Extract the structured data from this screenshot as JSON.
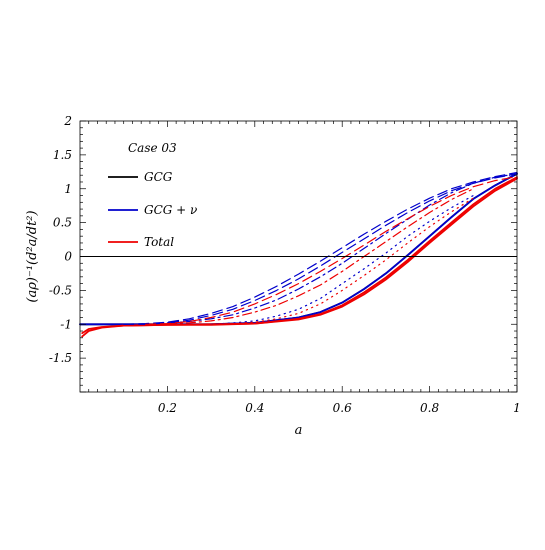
{
  "chart_data": {
    "type": "line",
    "title": "",
    "xlabel": "a",
    "ylabel": "(aρ)⁻¹(d²a/dt²)",
    "xlim": [
      0,
      1
    ],
    "ylim": [
      -2,
      2
    ],
    "xticks": [
      "0.2",
      "0.4",
      "0.6",
      "0.8",
      "1"
    ],
    "yticks": [
      "-1.5",
      "-1",
      "-0.5",
      "0",
      "0.5",
      "1",
      "1.5",
      "2"
    ],
    "zero_line": true,
    "grid": false,
    "legend_title": "Case 03",
    "legend_position": "top-left",
    "legend": [
      {
        "label": "GCG",
        "color": "#000000"
      },
      {
        "label": "GCG + ν",
        "color": "#0000cc"
      },
      {
        "label": "Total",
        "color": "#ee0000"
      }
    ],
    "series": [
      {
        "name": "GCG",
        "color": "#000000",
        "style": "solid",
        "x": [
          0.0,
          0.2,
          0.3,
          0.4,
          0.5,
          0.55,
          0.6,
          0.65,
          0.7,
          0.75,
          0.8,
          0.85,
          0.9,
          0.95,
          1.0
        ],
        "y": [
          -1.0,
          -1.0,
          -1.0,
          -0.98,
          -0.9,
          -0.82,
          -0.68,
          -0.48,
          -0.25,
          0.02,
          0.3,
          0.58,
          0.85,
          1.05,
          1.22
        ]
      },
      {
        "name": "GCG + ν",
        "color": "#0000cc",
        "style": "solid",
        "x": [
          0.0,
          0.2,
          0.3,
          0.4,
          0.5,
          0.55,
          0.6,
          0.65,
          0.7,
          0.75,
          0.8,
          0.85,
          0.9,
          0.95,
          1.0
        ],
        "y": [
          -1.0,
          -1.0,
          -1.0,
          -0.98,
          -0.9,
          -0.82,
          -0.68,
          -0.48,
          -0.25,
          0.02,
          0.3,
          0.58,
          0.85,
          1.05,
          1.22
        ]
      },
      {
        "name": "Total",
        "color": "#ee0000",
        "style": "solid",
        "x": [
          0.005,
          0.02,
          0.05,
          0.1,
          0.2,
          0.3,
          0.4,
          0.5,
          0.55,
          0.6,
          0.65,
          0.7,
          0.75,
          0.8,
          0.85,
          0.9,
          0.95,
          1.0
        ],
        "y": [
          -1.18,
          -1.1,
          -1.05,
          -1.02,
          -1.01,
          -1.01,
          -0.99,
          -0.93,
          -0.86,
          -0.74,
          -0.56,
          -0.34,
          -0.08,
          0.2,
          0.47,
          0.74,
          0.97,
          1.15
        ]
      },
      {
        "name": "Total",
        "color": "#ee0000",
        "style": "solid",
        "x": [
          0.005,
          0.02,
          0.05,
          0.1,
          0.2,
          0.3,
          0.4,
          0.5,
          0.55,
          0.6,
          0.65,
          0.7,
          0.75,
          0.8,
          0.85,
          0.9,
          0.95,
          1.0
        ],
        "y": [
          -1.13,
          -1.07,
          -1.04,
          -1.02,
          -1.01,
          -1.0,
          -0.99,
          -0.92,
          -0.85,
          -0.72,
          -0.53,
          -0.31,
          -0.05,
          0.23,
          0.5,
          0.77,
          1.0,
          1.17
        ]
      },
      {
        "name": "GCG + ν",
        "color": "#0000cc",
        "style": "dotted",
        "x": [
          0.3,
          0.35,
          0.4,
          0.45,
          0.5,
          0.55,
          0.6,
          0.65,
          0.7,
          0.75,
          0.8,
          0.85,
          0.9
        ],
        "y": [
          -1.0,
          -0.98,
          -0.95,
          -0.88,
          -0.78,
          -0.62,
          -0.4,
          -0.18,
          0.05,
          0.3,
          0.52,
          0.72,
          0.9
        ]
      },
      {
        "name": "Total",
        "color": "#ee0000",
        "style": "dotted",
        "x": [
          0.3,
          0.35,
          0.4,
          0.45,
          0.5,
          0.55,
          0.6,
          0.65,
          0.7,
          0.75,
          0.8,
          0.85,
          0.9
        ],
        "y": [
          -1.0,
          -0.99,
          -0.97,
          -0.92,
          -0.84,
          -0.7,
          -0.5,
          -0.28,
          -0.05,
          0.2,
          0.44,
          0.66,
          0.86
        ]
      },
      {
        "name": "GCG + ν",
        "color": "#0000cc",
        "style": "dashdot",
        "x": [
          0.2,
          0.25,
          0.3,
          0.35,
          0.4,
          0.45,
          0.5,
          0.55,
          0.6,
          0.65,
          0.7,
          0.75,
          0.8,
          0.85,
          0.9,
          0.95,
          1.0
        ],
        "y": [
          -0.98,
          -0.96,
          -0.92,
          -0.86,
          -0.76,
          -0.64,
          -0.48,
          -0.3,
          -0.1,
          0.12,
          0.34,
          0.55,
          0.76,
          0.94,
          1.08,
          1.17,
          1.22
        ]
      },
      {
        "name": "Total",
        "color": "#ee0000",
        "style": "dashdot",
        "x": [
          0.2,
          0.25,
          0.3,
          0.35,
          0.4,
          0.45,
          0.5,
          0.55,
          0.6,
          0.65,
          0.7,
          0.75,
          0.8,
          0.85,
          0.9
        ],
        "y": [
          -0.99,
          -0.98,
          -0.95,
          -0.9,
          -0.82,
          -0.72,
          -0.58,
          -0.42,
          -0.22,
          0.0,
          0.22,
          0.44,
          0.65,
          0.84,
          1.0
        ]
      },
      {
        "name": "GCG + ν",
        "color": "#0000cc",
        "style": "dashed",
        "x": [
          0.1,
          0.15,
          0.2,
          0.25,
          0.3,
          0.35,
          0.4,
          0.45,
          0.5,
          0.55,
          0.6,
          0.65,
          0.7,
          0.75,
          0.8,
          0.85,
          0.9,
          0.95,
          1.0
        ],
        "y": [
          -1.0,
          -0.99,
          -0.97,
          -0.92,
          -0.84,
          -0.74,
          -0.6,
          -0.44,
          -0.26,
          -0.07,
          0.13,
          0.33,
          0.52,
          0.7,
          0.86,
          1.0,
          1.1,
          1.18,
          1.24
        ]
      },
      {
        "name": "GCG + ν",
        "color": "#0000cc",
        "style": "dashed",
        "x": [
          0.1,
          0.15,
          0.2,
          0.25,
          0.3,
          0.35,
          0.4,
          0.45,
          0.5,
          0.55,
          0.6,
          0.65,
          0.7,
          0.75,
          0.8,
          0.85,
          0.9,
          0.95,
          1.0
        ],
        "y": [
          -1.0,
          -1.0,
          -0.98,
          -0.94,
          -0.87,
          -0.78,
          -0.65,
          -0.5,
          -0.33,
          -0.14,
          0.06,
          0.26,
          0.46,
          0.65,
          0.82,
          0.97,
          1.08,
          1.16,
          1.22
        ]
      },
      {
        "name": "Total",
        "color": "#ee0000",
        "style": "dashed",
        "x": [
          0.15,
          0.2,
          0.25,
          0.3,
          0.35,
          0.4,
          0.45,
          0.5,
          0.55,
          0.6,
          0.65,
          0.7,
          0.75,
          0.8,
          0.85,
          0.9,
          0.95,
          1.0
        ],
        "y": [
          -1.0,
          -0.99,
          -0.96,
          -0.9,
          -0.82,
          -0.7,
          -0.56,
          -0.4,
          -0.22,
          -0.03,
          0.17,
          0.37,
          0.56,
          0.74,
          0.9,
          1.03,
          1.12,
          1.18
        ]
      }
    ]
  }
}
